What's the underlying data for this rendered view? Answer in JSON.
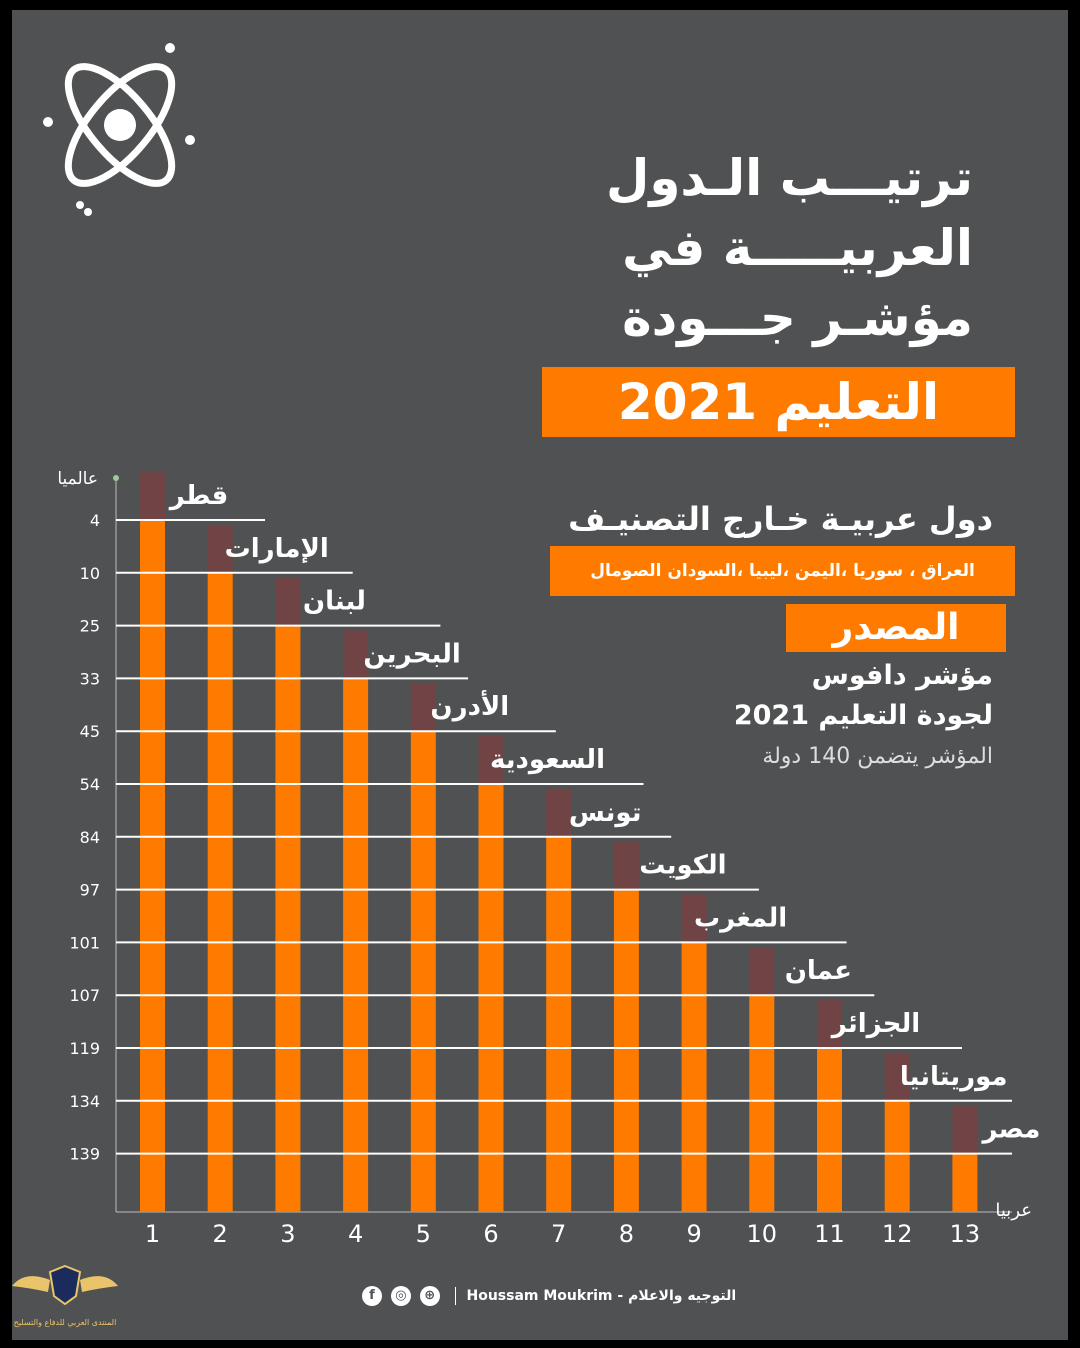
{
  "header": {
    "title_lines": [
      "ترتيـــب الـدول",
      "العربيـــــة في",
      "مؤشـر جـــودة"
    ],
    "title_box": "التعليم 2021"
  },
  "outside": {
    "heading": "دول عربيـة خـارج التصنيـف",
    "countries": "العراق ، سوريا ،اليمن ،ليبيا ،السودان الصومال"
  },
  "source": {
    "label": "المصدر",
    "line1": "مؤشر دافوس",
    "line2": "لجودة التعليم 2021",
    "note": "المؤشر يتضمن 140 دولة"
  },
  "footer": {
    "text": "Houssam Moukrim - التوجيه والاعلام",
    "icons": [
      "facebook-icon",
      "instagram-icon",
      "globe-icon"
    ]
  },
  "watermark": {
    "text": "المنتدى العربي للدفاع والتسليح"
  },
  "colors": {
    "background": "#505152",
    "accent": "#ff7b00",
    "text": "#ffffff",
    "line": "#ffffff"
  },
  "chart_data": {
    "type": "bar",
    "ylabel": "عالميا",
    "xlabel": "عربيا",
    "categories": [
      "1",
      "2",
      "3",
      "4",
      "5",
      "6",
      "7",
      "8",
      "9",
      "10",
      "11",
      "12",
      "13"
    ],
    "countries": [
      "قطر",
      "الإمارات",
      "لبنان",
      "البحرين",
      "الأدرن",
      "السعودية",
      "تونس",
      "الكويت",
      "المغرب",
      "عمان",
      "الجزائر",
      "موريتانيا",
      "مصر"
    ],
    "values": [
      4,
      10,
      25,
      33,
      45,
      54,
      84,
      97,
      101,
      107,
      119,
      134,
      139
    ],
    "y_ticks": [
      4,
      10,
      25,
      33,
      45,
      54,
      84,
      97,
      101,
      107,
      119,
      134,
      139
    ],
    "y_axis_inverted": true,
    "grid": false
  }
}
